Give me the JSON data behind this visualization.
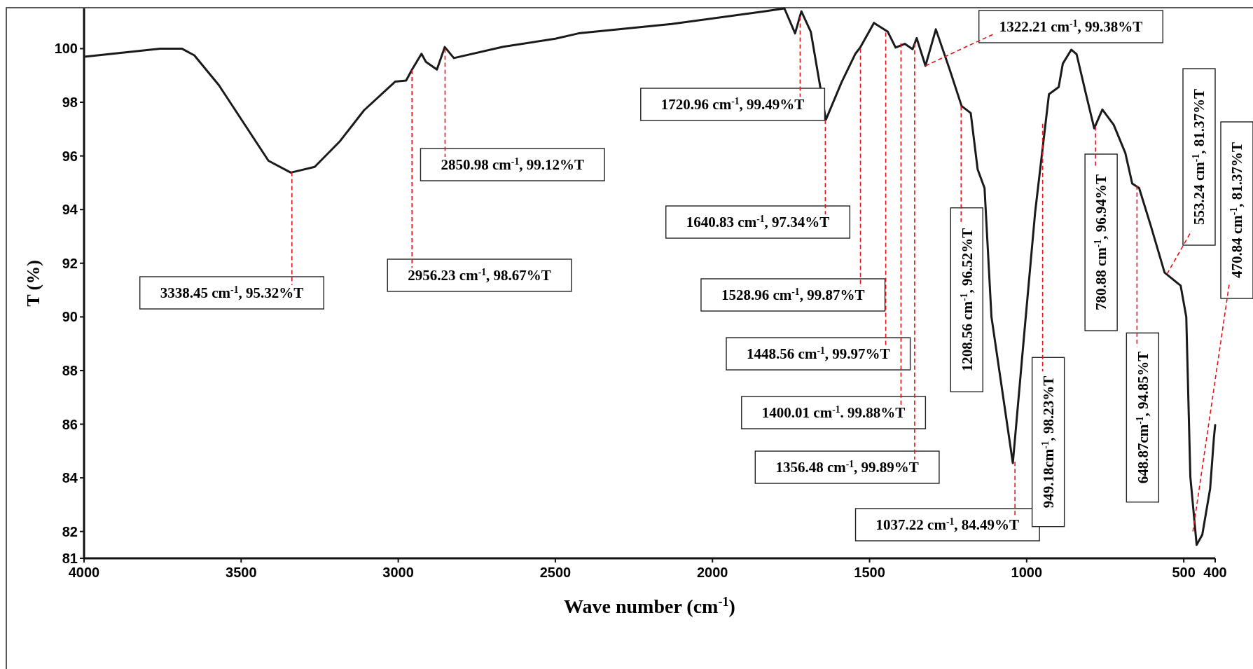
{
  "chart_data": {
    "type": "line",
    "xlabel": "Wave number (cm$^{-1}$)",
    "ylabel": "T (%)",
    "color": "#1a1a1a",
    "x": [
      3999,
      3758,
      3689,
      3649,
      3571,
      3492,
      3413,
      3342,
      3266,
      3187,
      3109,
      3010,
      2975,
      2956,
      2926,
      2912,
      2877,
      2852,
      2823,
      2666,
      2500,
      2426,
      2130,
      1835,
      1771,
      1737,
      1717,
      1687,
      1639,
      1589,
      1545,
      1530,
      1486,
      1442,
      1417,
      1388,
      1363,
      1350,
      1322,
      1289,
      1245,
      1207,
      1178,
      1156,
      1134,
      1112,
      1044,
      1009,
      973,
      929,
      898,
      885,
      858,
      841,
      811,
      785,
      759,
      723,
      686,
      664,
      642,
      605,
      561,
      524,
      510,
      492,
      479,
      459,
      441,
      416,
      404,
      400
    ],
    "values": [
      99.7,
      100.0,
      100.0,
      99.75,
      98.64,
      97.23,
      95.82,
      95.38,
      95.59,
      96.53,
      97.7,
      98.77,
      98.81,
      99.22,
      99.81,
      99.51,
      99.22,
      100.06,
      99.65,
      100.07,
      100.37,
      100.57,
      100.92,
      101.39,
      101.5,
      100.57,
      101.39,
      100.63,
      97.35,
      98.75,
      99.81,
      100.04,
      100.96,
      100.63,
      100.04,
      100.18,
      99.98,
      100.39,
      99.36,
      100.72,
      99.22,
      97.86,
      97.6,
      95.5,
      94.8,
      90.0,
      84.55,
      89.2,
      93.9,
      98.3,
      98.57,
      99.44,
      99.96,
      99.79,
      98.3,
      97.03,
      97.73,
      97.16,
      96.11,
      94.97,
      94.8,
      93.4,
      91.65,
      91.3,
      91.17,
      90.0,
      84.03,
      81.5,
      81.88,
      83.6,
      85.5,
      85.97
    ],
    "xlim": [
      4000,
      400
    ],
    "xticks": [
      4000,
      3500,
      3000,
      2500,
      2000,
      1500,
      1000,
      500,
      400
    ],
    "ylim": [
      81,
      101.5
    ],
    "yticks": [
      81,
      82,
      84,
      86,
      88,
      90,
      92,
      94,
      96,
      98,
      100
    ],
    "annotations": [
      {
        "text": "3338.45 cm$^{-1}$, 95.32%T",
        "x": 3338.45,
        "y": 95.4
      },
      {
        "text": "2956.23 cm$^{-1}$, 98.67%T",
        "x": 2956.23,
        "y": 99.2
      },
      {
        "text": "2850.98 cm$^{-1}$, 99.12%T",
        "x": 2850.98,
        "y": 100.0
      },
      {
        "text": "1720.96 cm$^{-1}$, 99.49%T",
        "x": 1720.96,
        "y": 101.2
      },
      {
        "text": "1640.83 cm$^{-1}$, 97.34%T",
        "x": 1640.83,
        "y": 97.34
      },
      {
        "text": "1528.96 cm$^{-1}$, 99.87%T",
        "x": 1528.96,
        "y": 100.0
      },
      {
        "text": "1448.56 cm$^{-1}$, 99.97%T",
        "x": 1448.56,
        "y": 100.6
      },
      {
        "text": "1400.01 cm$^{-1}$. 99.88%T",
        "x": 1400.01,
        "y": 100.2
      },
      {
        "text": "1356.48 cm$^{-1}$, 99.89%T",
        "x": 1356.48,
        "y": 100.2
      },
      {
        "text": "1322.21 cm$^{-1}$, 99.38%T",
        "x": 1322.21,
        "y": 99.36
      },
      {
        "text": "1208.56 cm$^{-1}$, 96.52%T",
        "x": 1208.56,
        "y": 97.86
      },
      {
        "text": "1037.22 cm$^{-1}$, 84.49%T",
        "x": 1037.22,
        "y": 84.6
      },
      {
        "text": "949.18cm$^{-1}$, 98.23%T",
        "x": 949.18,
        "y": 97.2
      },
      {
        "text": "780.88 cm$^{-1}$, 96.94%T",
        "x": 780.88,
        "y": 97.1
      },
      {
        "text": "648.87cm$^{-1}$, 94.85%T",
        "x": 648.87,
        "y": 94.9
      },
      {
        "text": "553.24 cm$^{-1}$, 81.37%T",
        "x": 553.24,
        "y": 91.6
      },
      {
        "text": "470.84 cm$^{-1}$, 81.37%T",
        "x": 470.84,
        "y": 82.0
      }
    ]
  }
}
